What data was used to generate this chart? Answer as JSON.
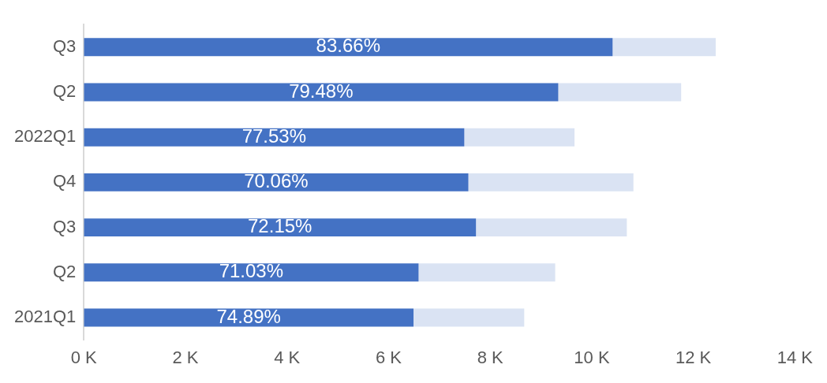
{
  "chart_data": {
    "type": "bar",
    "orientation": "horizontal",
    "categories": [
      "Q3",
      "Q2",
      "2022Q1",
      "Q4",
      "Q3",
      "Q2",
      "2021Q1"
    ],
    "series": [
      {
        "color": "#4472c4",
        "values": [
          10.41,
          9.34,
          7.49,
          7.57,
          7.72,
          6.59,
          6.49
        ]
      },
      {
        "color": "#dae3f3",
        "values": [
          2.03,
          2.42,
          2.17,
          3.25,
          2.97,
          2.69,
          2.18
        ]
      }
    ],
    "stacked": true,
    "annotations": [
      "83.66%",
      "79.48%",
      "77.53%",
      "70.06%",
      "72.15%",
      "71.03%",
      "74.89%"
    ],
    "xlim": [
      0,
      14
    ],
    "xticks": [
      {
        "value": 0,
        "label": "0 K"
      },
      {
        "value": 2,
        "label": "2 K"
      },
      {
        "value": 4,
        "label": "4 K"
      },
      {
        "value": 6,
        "label": "6 K"
      },
      {
        "value": 8,
        "label": "8 K"
      },
      {
        "value": 10,
        "label": "10 K"
      },
      {
        "value": 12,
        "label": "12 K"
      },
      {
        "value": 14,
        "label": "14 K"
      }
    ],
    "grid": false,
    "legend": false
  }
}
